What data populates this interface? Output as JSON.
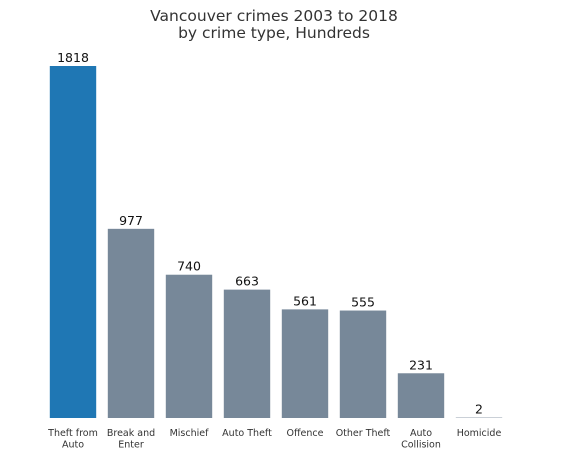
{
  "chart_data": {
    "type": "bar",
    "title_lines": [
      "Vancouver crimes 2003 to 2018",
      "by crime type, Hundreds"
    ],
    "categories": [
      [
        "Theft from",
        "Auto"
      ],
      [
        "Break and",
        "Enter"
      ],
      [
        "Mischief"
      ],
      [
        "Auto Theft"
      ],
      [
        "Offence"
      ],
      [
        "Other Theft"
      ],
      [
        "Auto",
        "Collision"
      ],
      [
        "Homicide"
      ]
    ],
    "values": [
      1818,
      977,
      740,
      663,
      561,
      555,
      231,
      2
    ],
    "highlight_index": 0,
    "colors": {
      "highlight": "#1f77b4",
      "default": "#778899"
    },
    "ylim": [
      0,
      1818
    ],
    "grid": false,
    "xlabel": "",
    "ylabel": ""
  }
}
